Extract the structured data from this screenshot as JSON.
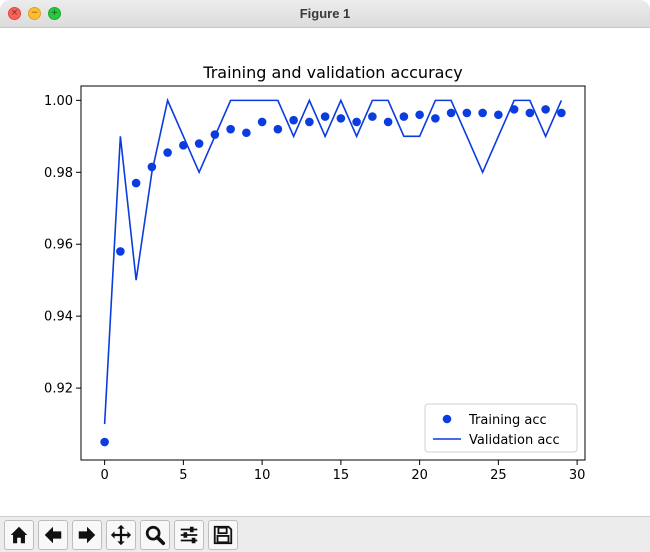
{
  "window": {
    "title": "Figure 1"
  },
  "toolbar": {
    "buttons": [
      {
        "icon": "home-icon"
      },
      {
        "icon": "arrow-left-icon"
      },
      {
        "icon": "arrow-right-icon"
      },
      {
        "icon": "move-icon"
      },
      {
        "icon": "zoom-icon"
      },
      {
        "icon": "sliders-icon"
      },
      {
        "icon": "save-icon"
      }
    ]
  },
  "chart_data": {
    "type": "line",
    "title": "Training and validation accuracy",
    "xlabel": "",
    "ylabel": "",
    "xlim": [
      -1.5,
      30.5
    ],
    "ylim": [
      0.9,
      1.004
    ],
    "xticks": [
      0,
      5,
      10,
      15,
      20,
      25,
      30
    ],
    "yticks": [
      0.92,
      0.94,
      0.96,
      0.98,
      1.0
    ],
    "ytick_labels": [
      "0.92",
      "0.94",
      "0.96",
      "0.98",
      "1.00"
    ],
    "grid": false,
    "legend_position": "lower-right",
    "series": [
      {
        "name": "Training acc",
        "style": "markers",
        "color": "#0b3ce0",
        "x": [
          0,
          1,
          2,
          3,
          4,
          5,
          6,
          7,
          8,
          9,
          10,
          11,
          12,
          13,
          14,
          15,
          16,
          17,
          18,
          19,
          20,
          21,
          22,
          23,
          24,
          25,
          26,
          27,
          28,
          29
        ],
        "values": [
          0.905,
          0.958,
          0.977,
          0.9815,
          0.9855,
          0.9875,
          0.988,
          0.9905,
          0.992,
          0.991,
          0.994,
          0.992,
          0.9945,
          0.994,
          0.9955,
          0.995,
          0.994,
          0.9955,
          0.994,
          0.9955,
          0.996,
          0.995,
          0.9965,
          0.9965,
          0.9965,
          0.996,
          0.9975,
          0.9965,
          0.9975,
          0.9965
        ]
      },
      {
        "name": "Validation acc",
        "style": "line",
        "color": "#0b3ce0",
        "x": [
          0,
          1,
          2,
          3,
          4,
          5,
          6,
          7,
          8,
          9,
          10,
          11,
          12,
          13,
          14,
          15,
          16,
          17,
          18,
          19,
          20,
          21,
          22,
          23,
          24,
          25,
          26,
          27,
          28,
          29
        ],
        "values": [
          0.91,
          0.99,
          0.95,
          0.98,
          1.0,
          0.99,
          0.98,
          0.99,
          1.0,
          1.0,
          1.0,
          1.0,
          0.99,
          1.0,
          0.99,
          1.0,
          0.99,
          1.0,
          1.0,
          0.99,
          0.99,
          1.0,
          1.0,
          0.99,
          0.98,
          0.99,
          1.0,
          1.0,
          0.99,
          1.0
        ]
      }
    ]
  }
}
